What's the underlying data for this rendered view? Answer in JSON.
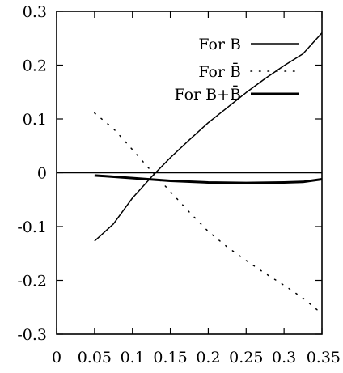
{
  "chart_data": {
    "type": "line",
    "title": "",
    "xlabel": "",
    "ylabel": "",
    "xlim": [
      0,
      0.35
    ],
    "ylim": [
      -0.3,
      0.3
    ],
    "grid": false,
    "legend_position": "top-right",
    "x_ticks": [
      {
        "value": 0,
        "label": "0"
      },
      {
        "value": 0.05,
        "label": "0.05"
      },
      {
        "value": 0.1,
        "label": "0.1"
      },
      {
        "value": 0.15,
        "label": "0.15"
      },
      {
        "value": 0.2,
        "label": "0.2"
      },
      {
        "value": 0.25,
        "label": "0.25"
      },
      {
        "value": 0.3,
        "label": "0.3"
      },
      {
        "value": 0.35,
        "label": "0.35"
      }
    ],
    "y_ticks": [
      {
        "value": 0.3,
        "label": "0.3"
      },
      {
        "value": 0.2,
        "label": "0.2"
      },
      {
        "value": 0.1,
        "label": "0.1"
      },
      {
        "value": 0,
        "label": "0"
      },
      {
        "value": -0.1,
        "label": "-0.1"
      },
      {
        "value": -0.2,
        "label": "-0.2"
      },
      {
        "value": -0.3,
        "label": "-0.3"
      }
    ],
    "zero_line": true,
    "series": [
      {
        "name": "For B",
        "style": "solid",
        "line_weight": "thin",
        "color": "#000000",
        "x": [
          0.05,
          0.075,
          0.1,
          0.125,
          0.15,
          0.175,
          0.2,
          0.225,
          0.25,
          0.275,
          0.3,
          0.325,
          0.35
        ],
        "y": [
          -0.127,
          -0.095,
          -0.047,
          -0.008,
          0.028,
          0.061,
          0.093,
          0.121,
          0.149,
          0.175,
          0.199,
          0.221,
          0.26
        ]
      },
      {
        "name": "For B̄",
        "style": "dotted",
        "line_weight": "thin",
        "color": "#000000",
        "x": [
          0.05,
          0.075,
          0.1,
          0.125,
          0.15,
          0.175,
          0.2,
          0.225,
          0.25,
          0.275,
          0.3,
          0.325,
          0.35
        ],
        "y": [
          0.111,
          0.082,
          0.043,
          0.003,
          -0.035,
          -0.073,
          -0.109,
          -0.138,
          -0.163,
          -0.187,
          -0.209,
          -0.233,
          -0.262
        ]
      },
      {
        "name": "For B+B̄",
        "style": "solid",
        "line_weight": "thick",
        "color": "#000000",
        "x": [
          0.05,
          0.1,
          0.15,
          0.2,
          0.25,
          0.3,
          0.325,
          0.35
        ],
        "y": [
          -0.005,
          -0.01,
          -0.015,
          -0.018,
          -0.019,
          -0.018,
          -0.017,
          -0.012
        ]
      }
    ]
  }
}
